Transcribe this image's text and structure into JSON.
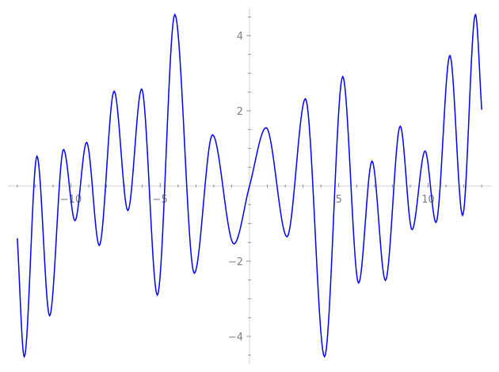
{
  "chart_data": {
    "type": "line",
    "title": "",
    "xlabel": "",
    "ylabel": "",
    "xlim": [
      -13,
      13
    ],
    "ylim": [
      -4.7,
      4.7
    ],
    "grid": false,
    "line_color": "#0000ff",
    "axis_color": "#d9d9d9",
    "tick_color": "#808080",
    "x_ticks": [
      {
        "value": -10,
        "label": "−10"
      },
      {
        "value": -5,
        "label": "−5"
      },
      {
        "value": 5,
        "label": "5"
      },
      {
        "value": 10,
        "label": "10"
      }
    ],
    "y_ticks": [
      {
        "value": 4,
        "label": "4"
      },
      {
        "value": 2,
        "label": "2"
      },
      {
        "value": -2,
        "label": "−2"
      },
      {
        "value": -4,
        "label": "−4"
      }
    ],
    "series": [
      {
        "points": [
          [
            -13.0,
            -1.39
          ],
          [
            -12.61,
            -4.54
          ],
          [
            -11.9,
            0.79
          ],
          [
            -11.19,
            -3.45
          ],
          [
            -10.41,
            0.97
          ],
          [
            -9.77,
            -0.92
          ],
          [
            -9.12,
            1.16
          ],
          [
            -8.41,
            -1.58
          ],
          [
            -7.58,
            2.52
          ],
          [
            -6.81,
            -0.65
          ],
          [
            -6.04,
            2.58
          ],
          [
            -5.16,
            -2.9
          ],
          [
            -4.18,
            4.56
          ],
          [
            -3.09,
            -2.32
          ],
          [
            -2.07,
            1.36
          ],
          [
            -0.87,
            -1.54
          ],
          [
            0.0,
            0.0
          ],
          [
            0.93,
            1.55
          ],
          [
            2.1,
            -1.35
          ],
          [
            3.13,
            2.32
          ],
          [
            4.2,
            -4.54
          ],
          [
            5.22,
            2.91
          ],
          [
            6.11,
            -2.58
          ],
          [
            6.86,
            0.66
          ],
          [
            7.61,
            -2.51
          ],
          [
            8.44,
            1.59
          ],
          [
            9.1,
            -1.16
          ],
          [
            9.83,
            0.93
          ],
          [
            10.44,
            -0.97
          ],
          [
            11.22,
            3.47
          ],
          [
            11.93,
            -0.78
          ],
          [
            12.65,
            4.56
          ],
          [
            13.0,
            2.03
          ]
        ]
      }
    ]
  }
}
